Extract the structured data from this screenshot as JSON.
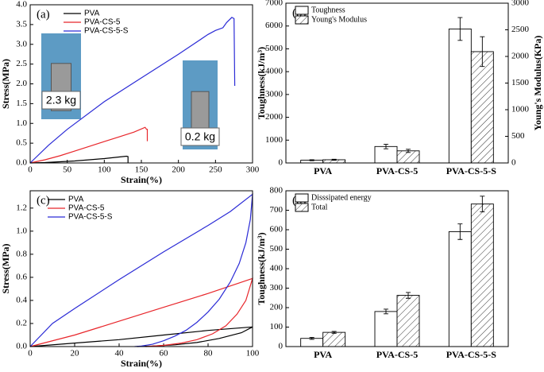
{
  "chart_data": [
    {
      "type": "line",
      "panel_label": "(a)",
      "x_label": "Strain(%)",
      "y_label": "Stress(MPa)",
      "xlim": [
        0,
        300
      ],
      "xticks": [
        0,
        50,
        100,
        150,
        200,
        250,
        300
      ],
      "ylim": [
        0,
        4
      ],
      "yticks": [
        {
          "value": 0,
          "label": "0.0"
        },
        0.5,
        {
          "value": 1,
          "label": "1.0"
        },
        1.5,
        {
          "value": 2,
          "label": "2.0"
        },
        2.5,
        {
          "value": 3,
          "label": "3.0"
        },
        3.5,
        {
          "value": 4,
          "label": "4.0"
        }
      ],
      "annotations": [
        "2.3 kg",
        "0.2 kg"
      ],
      "series": [
        {
          "name": "PVA",
          "color": "#000000",
          "x": [
            0,
            20,
            40,
            60,
            80,
            100,
            120,
            130,
            132,
            132
          ],
          "values": [
            0,
            0.01,
            0.03,
            0.05,
            0.08,
            0.11,
            0.15,
            0.17,
            0.16,
            0
          ]
        },
        {
          "name": "PVA-CS-5",
          "color": "#e8262b",
          "x": [
            0,
            20,
            40,
            60,
            80,
            100,
            120,
            140,
            155,
            157,
            158,
            158
          ],
          "values": [
            0,
            0.08,
            0.18,
            0.3,
            0.42,
            0.54,
            0.66,
            0.78,
            0.9,
            0.85,
            0.85,
            0.55
          ]
        },
        {
          "name": "PVA-CS-5-S",
          "color": "#2b2bd6",
          "x": [
            0,
            25,
            50,
            100,
            150,
            200,
            240,
            250,
            260,
            265,
            272,
            275,
            276
          ],
          "values": [
            0,
            0.45,
            0.85,
            1.55,
            2.15,
            2.75,
            3.25,
            3.35,
            3.42,
            3.55,
            3.68,
            3.65,
            1.95
          ]
        }
      ]
    },
    {
      "type": "bar",
      "panel_label": "(b)",
      "y_label": "Toughness(kJ/m³)",
      "y2_label": "Young's Modulus(KPa)",
      "categories": [
        "PVA",
        "PVA-CS-5",
        "PVA-CS-5-S"
      ],
      "ylim": [
        0,
        7000
      ],
      "yticks": [
        0,
        1000,
        2000,
        3000,
        4000,
        5000,
        6000,
        7000
      ],
      "y2lim": [
        0,
        3000
      ],
      "y2ticks": [
        0,
        500,
        1000,
        1500,
        2000,
        2500,
        3000
      ],
      "series": [
        {
          "name": "Toughness",
          "color": "#000000",
          "hatch": false,
          "values": [
            120,
            720,
            5870
          ],
          "errors": [
            20,
            100,
            500
          ]
        },
        {
          "name": "Young's Modulus",
          "color": "#000000",
          "hatch": true,
          "axis": "y2",
          "values": [
            60,
            227,
            2090
          ],
          "errors": [
            10,
            30,
            280
          ]
        }
      ]
    },
    {
      "type": "line",
      "panel_label": "(c)",
      "x_label": "Strain(%)",
      "y_label": "Stress(MPa)",
      "xlim": [
        0,
        100
      ],
      "xticks": [
        0,
        20,
        40,
        60,
        80,
        100
      ],
      "ylim": [
        0,
        1.35
      ],
      "yticks": [
        {
          "value": 0,
          "label": "0.0"
        },
        0.2,
        0.4,
        0.6,
        0.8,
        {
          "value": 1,
          "label": "1.0"
        },
        1.2
      ],
      "series": [
        {
          "name": "PVA",
          "color": "#000000",
          "x": [
            0,
            20,
            40,
            60,
            80,
            100,
            95,
            85,
            75,
            65,
            55,
            48
          ],
          "values": [
            0,
            0.03,
            0.06,
            0.1,
            0.14,
            0.17,
            0.12,
            0.07,
            0.035,
            0.015,
            0.004,
            0
          ]
        },
        {
          "name": "PVA-CS-5",
          "color": "#e8262b",
          "x": [
            0,
            20,
            40,
            60,
            80,
            100,
            97,
            93,
            88,
            82,
            75,
            68,
            60,
            52
          ],
          "values": [
            0,
            0.1,
            0.22,
            0.34,
            0.46,
            0.59,
            0.4,
            0.28,
            0.18,
            0.11,
            0.06,
            0.03,
            0.01,
            0
          ]
        },
        {
          "name": "PVA-CS-5-S",
          "color": "#2b2bd6",
          "x": [
            0,
            10,
            20,
            40,
            60,
            80,
            90,
            100,
            99,
            97,
            94,
            90,
            85,
            80,
            75,
            70,
            65,
            60,
            55,
            50,
            47
          ],
          "values": [
            0,
            0.2,
            0.33,
            0.58,
            0.82,
            1.05,
            1.17,
            1.32,
            1.1,
            0.9,
            0.72,
            0.56,
            0.41,
            0.3,
            0.21,
            0.14,
            0.09,
            0.05,
            0.02,
            0.005,
            0
          ]
        }
      ]
    },
    {
      "type": "bar",
      "panel_label": "(d)",
      "y_label": "Toughness(kJ/m³)",
      "categories": [
        "PVA",
        "PVA-CS-5",
        "PVA-CS-5-S"
      ],
      "ylim": [
        0,
        800
      ],
      "yticks": [
        0,
        100,
        200,
        300,
        400,
        500,
        600,
        700,
        800
      ],
      "series": [
        {
          "name": "Disssipated energy",
          "color": "#000000",
          "hatch": false,
          "values": [
            42,
            180,
            590
          ],
          "errors": [
            5,
            12,
            40
          ]
        },
        {
          "name": "Total",
          "color": "#000000",
          "hatch": true,
          "values": [
            73,
            263,
            732
          ],
          "errors": [
            5,
            15,
            40
          ]
        }
      ]
    }
  ]
}
